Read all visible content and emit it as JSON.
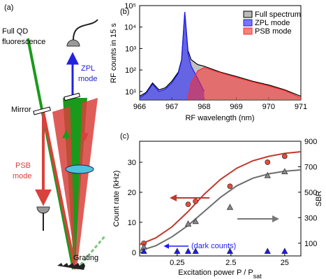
{
  "diagram": {
    "panel": "(a)",
    "input_label": [
      "Full QD",
      "fluorescence"
    ],
    "zpl_label": [
      "ZPL",
      "mode"
    ],
    "mirror_label": "Mirror",
    "psb_label": [
      "PSB",
      "mode"
    ],
    "grating_label": "Grating"
  },
  "chart_data": [
    {
      "type": "area",
      "panel": "(b)",
      "xlabel": "RF wavelength (nm)",
      "ylabel": "RF counts in 15 s",
      "ylog": true,
      "legend": "upper right",
      "x": [
        966,
        966.2,
        966.4,
        966.6,
        966.8,
        967,
        967.2,
        967.3,
        967.4,
        967.5,
        967.6,
        967.8,
        968,
        968.5,
        969,
        969.5,
        970,
        970.5,
        971
      ],
      "xlim": [
        966,
        971
      ],
      "xticks": [
        966,
        967,
        968,
        969,
        970,
        971
      ],
      "ylim": [
        4,
        100000
      ],
      "yticks": [
        {
          "value": 10,
          "label": "10¹"
        },
        {
          "value": 100,
          "label": "10²"
        },
        {
          "value": 1000,
          "label": "10³"
        },
        {
          "value": 10000,
          "label": "10⁴"
        },
        {
          "value": 100000,
          "label": "10⁵"
        }
      ],
      "series": [
        {
          "name": "Full spectrum",
          "color": "#8c8c8c",
          "values": [
            6,
            9,
            25,
            12,
            15,
            30,
            80,
            300,
            50000,
            800,
            300,
            180,
            150,
            80,
            50,
            30,
            20,
            12,
            6
          ]
        },
        {
          "name": "ZPL mode",
          "color": "#1a1aff",
          "values": [
            5,
            8,
            22,
            10,
            13,
            25,
            70,
            280,
            50000,
            600,
            150,
            40,
            10,
            null,
            null,
            null,
            null,
            null,
            null
          ]
        },
        {
          "name": "PSB mode",
          "color": "#ff2a2a",
          "values": [
            null,
            null,
            null,
            null,
            null,
            null,
            null,
            null,
            null,
            5,
            25,
            90,
            130,
            75,
            45,
            28,
            18,
            11,
            5
          ]
        }
      ]
    },
    {
      "type": "scatter",
      "panel": "(c)",
      "xlabel": "Excitation power P / P",
      "xlabel_sub": "sat",
      "ylabel": "Count rate (kHz)",
      "y2label": "SBR",
      "xlog": true,
      "annotation": "(dark counts)",
      "xlim": [
        0.05,
        50
      ],
      "xticks": [
        0.25,
        2.5,
        25
      ],
      "ylim": [
        -1.2,
        37
      ],
      "yticks": [
        0,
        10,
        20,
        30
      ],
      "y2lim": [
        0,
        900
      ],
      "y2ticks": [
        100,
        300,
        500,
        700,
        900
      ],
      "series": [
        {
          "color": "#c0392b",
          "marker": "none",
          "x": [
            0.05,
            0.1,
            0.2,
            0.4,
            0.8,
            1.6,
            3.2,
            6.4,
            12.8,
            25.6,
            50
          ],
          "values": [
            2.6,
            4.8,
            8.5,
            13.6,
            19.4,
            24.3,
            28,
            30.5,
            32,
            33,
            33.5
          ]
        },
        {
          "color": "#6e6e6e",
          "marker": "none",
          "axis": "y2",
          "x": [
            0.05,
            0.1,
            0.2,
            0.4,
            0.8,
            1.6,
            3.2,
            6.4,
            12.8,
            25.6,
            50
          ],
          "values": [
            40,
            80,
            150,
            240,
            350,
            460,
            550,
            610,
            645,
            665,
            675
          ]
        },
        {
          "color": "#e74c3c",
          "marker": "circle",
          "x": [
            0.06,
            0.4,
            0.55,
            2.4,
            12,
            25
          ],
          "values": [
            3,
            16,
            17,
            22,
            30,
            32
          ]
        },
        {
          "color": "#8a8a8a",
          "marker": "triangle",
          "axis": "y2",
          "x": [
            0.06,
            0.4,
            0.55,
            2.4,
            12,
            25
          ],
          "values": [
            70,
            250,
            270,
            380,
            630,
            660
          ]
        },
        {
          "color": "#1a1aff",
          "marker": "triangle",
          "x": [
            0.06,
            0.25,
            0.4,
            0.55,
            2.4,
            12,
            25
          ],
          "values": [
            0.3,
            0.3,
            0.3,
            0.3,
            0.3,
            0.3,
            0.3
          ]
        }
      ]
    }
  ]
}
